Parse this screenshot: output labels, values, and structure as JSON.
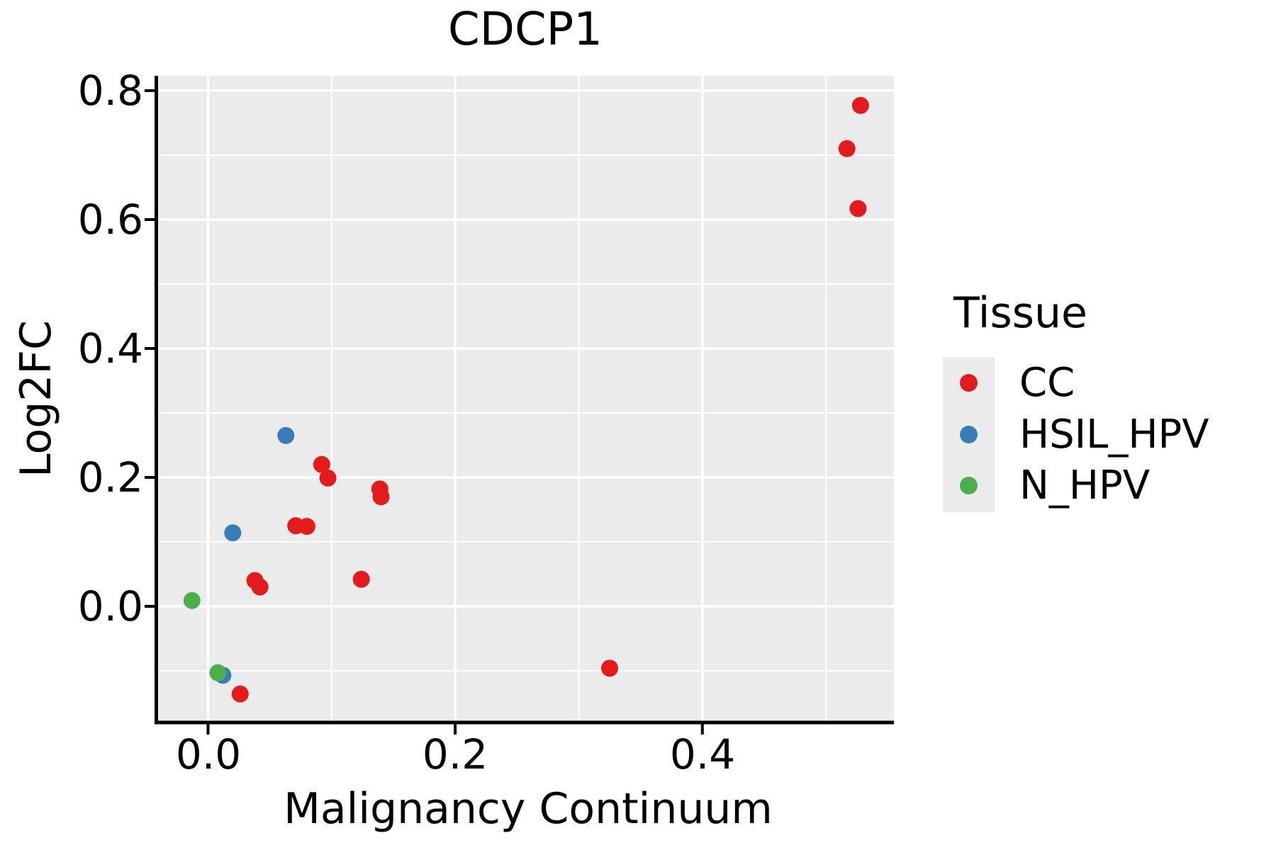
{
  "chart_data": {
    "type": "scatter",
    "title": "CDCP1",
    "xlabel": "Malignancy Continuum",
    "ylabel": "Log2FC",
    "xlim": [
      -0.041,
      0.555
    ],
    "ylim": [
      -0.178,
      0.823
    ],
    "grid": true,
    "legend_position": "right",
    "point_radius": 12,
    "x_ticks": [
      {
        "value": 0.0,
        "label": "0.0"
      },
      {
        "value": 0.2,
        "label": "0.2"
      },
      {
        "value": 0.4,
        "label": "0.4"
      }
    ],
    "x_minor_gridlines": [
      0.1,
      0.3,
      0.5
    ],
    "y_ticks": [
      {
        "value": 0.8,
        "label": "0.8"
      },
      {
        "value": 0.6,
        "label": "0.6"
      },
      {
        "value": 0.4,
        "label": "0.4"
      },
      {
        "value": 0.2,
        "label": "0.2"
      },
      {
        "value": 0.0,
        "label": "0.0"
      }
    ],
    "y_minor_gridlines": [
      0.7,
      0.5,
      0.3,
      0.1,
      -0.1
    ],
    "legend": {
      "title": "Tissue"
    },
    "series": [
      {
        "name": "CC",
        "color": "#E41A1C",
        "points": [
          [
            0.528,
            0.777
          ],
          [
            0.517,
            0.71
          ],
          [
            0.526,
            0.617
          ],
          [
            0.092,
            0.22
          ],
          [
            0.097,
            0.199
          ],
          [
            0.139,
            0.182
          ],
          [
            0.14,
            0.17
          ],
          [
            0.071,
            0.125
          ],
          [
            0.08,
            0.124
          ],
          [
            0.124,
            0.042
          ],
          [
            0.038,
            0.04
          ],
          [
            0.042,
            0.03
          ],
          [
            0.325,
            -0.096
          ],
          [
            0.026,
            -0.136
          ]
        ]
      },
      {
        "name": "HSIL_HPV",
        "color": "#377EB8",
        "points": [
          [
            0.063,
            0.265
          ],
          [
            0.02,
            0.114
          ],
          [
            0.012,
            -0.107
          ]
        ]
      },
      {
        "name": "N_HPV",
        "color": "#4DAF4A",
        "points": [
          [
            -0.013,
            0.009
          ],
          [
            0.008,
            -0.103
          ]
        ]
      }
    ],
    "colors": {
      "panel_bg": "#EBEBEB",
      "grid": "#FFFFFF",
      "axis": "#000000",
      "text": "#000000",
      "legend_key_bg": "#EBEBEB"
    }
  }
}
